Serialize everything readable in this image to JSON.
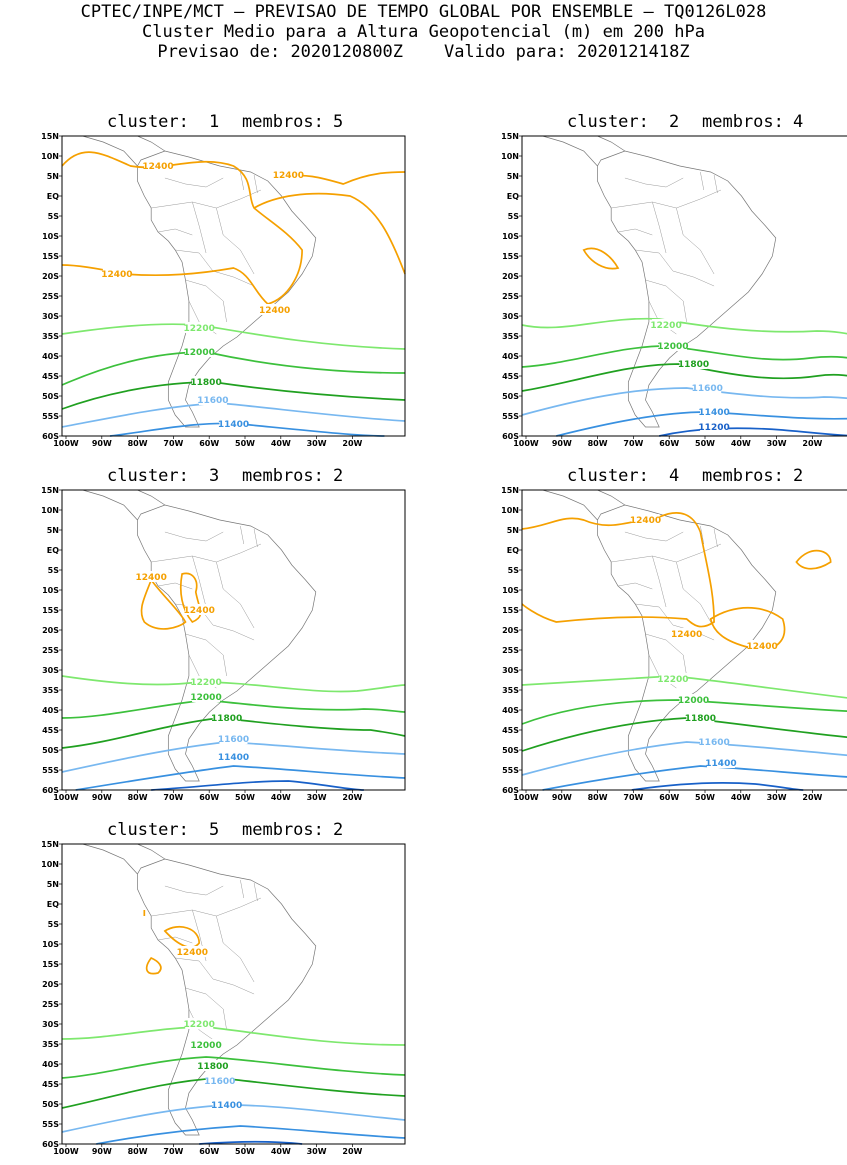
{
  "header": {
    "line1": "CPTEC/INPE/MCT – PREVISAO DE TEMPO GLOBAL POR ENSEMBLE – TQ0126L028",
    "line2": "Cluster Medio para a Altura Geopotencial (m) em 200 hPa",
    "line3": "Previsao de: 2020120800Z    Valido para: 2020121418Z"
  },
  "axes": {
    "lat_labels": [
      "15N",
      "10N",
      "5N",
      "EQ",
      "5S",
      "10S",
      "15S",
      "20S",
      "25S",
      "30S",
      "35S",
      "40S",
      "45S",
      "50S",
      "55S",
      "60S"
    ],
    "lon_labels": [
      "100W",
      "90W",
      "80W",
      "70W",
      "60W",
      "50W",
      "40W",
      "30W",
      "20W"
    ]
  },
  "contour_colors": {
    "12400": "#f5a000",
    "12200": "#7ee86e",
    "12000": "#3cc03c",
    "11800": "#20a020",
    "11600": "#78b8f0",
    "11400": "#3890e0",
    "11200": "#1860c8"
  },
  "panels": [
    {
      "cluster_label": "cluster:",
      "cluster": "1",
      "members_label": "membros:",
      "members": "5",
      "labels": [
        {
          "t": "12400",
          "c": "12400"
        },
        {
          "t": "12400",
          "c": "12400"
        },
        {
          "t": "12400",
          "c": "12400"
        },
        {
          "t": "12400",
          "c": "12400"
        },
        {
          "t": "12200",
          "c": "12200"
        },
        {
          "t": "12000",
          "c": "12000"
        },
        {
          "t": "11800",
          "c": "11800"
        },
        {
          "t": "11600",
          "c": "11600"
        },
        {
          "t": "11400",
          "c": "11400"
        }
      ]
    },
    {
      "cluster_label": "cluster:",
      "cluster": "2",
      "members_label": "membros:",
      "members": "4",
      "labels": [
        {
          "t": "12200",
          "c": "12200"
        },
        {
          "t": "12000",
          "c": "12000"
        },
        {
          "t": "11800",
          "c": "11800"
        },
        {
          "t": "11600",
          "c": "11600"
        },
        {
          "t": "11400",
          "c": "11400"
        },
        {
          "t": "11200",
          "c": "11200"
        }
      ]
    },
    {
      "cluster_label": "cluster:",
      "cluster": "3",
      "members_label": "membros:",
      "members": "2",
      "labels": [
        {
          "t": "12400",
          "c": "12400"
        },
        {
          "t": "12400",
          "c": "12400"
        },
        {
          "t": "12200",
          "c": "12200"
        },
        {
          "t": "12000",
          "c": "12000"
        },
        {
          "t": "11800",
          "c": "11800"
        },
        {
          "t": "11600",
          "c": "11600"
        },
        {
          "t": "11400",
          "c": "11400"
        }
      ]
    },
    {
      "cluster_label": "cluster:",
      "cluster": "4",
      "members_label": "membros:",
      "members": "2",
      "labels": [
        {
          "t": "12400",
          "c": "12400"
        },
        {
          "t": "12400",
          "c": "12400"
        },
        {
          "t": "12400",
          "c": "12400"
        },
        {
          "t": "12200",
          "c": "12200"
        },
        {
          "t": "12000",
          "c": "12000"
        },
        {
          "t": "11800",
          "c": "11800"
        },
        {
          "t": "11600",
          "c": "11600"
        },
        {
          "t": "11400",
          "c": "11400"
        }
      ]
    },
    {
      "cluster_label": "cluster:",
      "cluster": "5",
      "members_label": "membros:",
      "members": "2",
      "labels": [
        {
          "t": "12400",
          "c": "12400"
        },
        {
          "t": "12200",
          "c": "12200"
        },
        {
          "t": "12000",
          "c": "12000"
        },
        {
          "t": "11800",
          "c": "11800"
        },
        {
          "t": "11600",
          "c": "11600"
        },
        {
          "t": "11400",
          "c": "11400"
        }
      ]
    }
  ]
}
